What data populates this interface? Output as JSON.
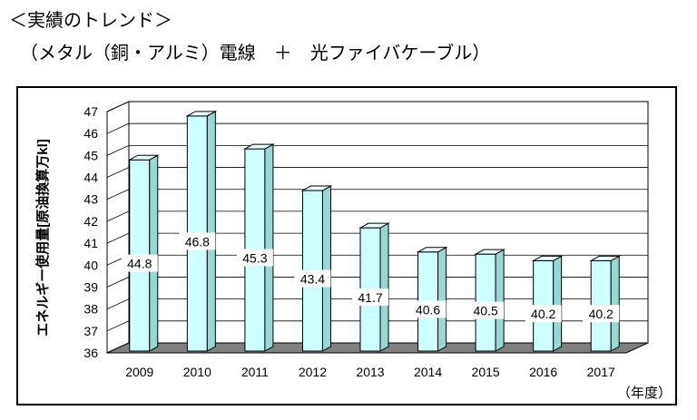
{
  "title_line1": "＜実績のトレンド＞",
  "title_line2": "（メタル（銅・アルミ）電線　＋　光ファイバケーブル）",
  "chart_data": {
    "type": "bar",
    "categories": [
      "2009",
      "2010",
      "2011",
      "2012",
      "2013",
      "2014",
      "2015",
      "2016",
      "2017"
    ],
    "values": [
      44.8,
      46.8,
      45.3,
      43.4,
      41.7,
      40.6,
      40.5,
      40.2,
      40.2
    ],
    "data_labels": [
      "44.8",
      "46.8",
      "45.3",
      "43.4",
      "41.7",
      "40.6",
      "40.5",
      "40.2",
      "40.2"
    ],
    "ylabel": "エネルギー使用量[原油換算万kl]",
    "xunit": "（年度）",
    "ylim": [
      36,
      47
    ],
    "yticks": [
      "36",
      "37",
      "38",
      "39",
      "40",
      "41",
      "42",
      "43",
      "44",
      "45",
      "46",
      "47"
    ],
    "grid": true,
    "style": "3d-bar",
    "colors": {
      "bar_front": "#ccffff",
      "bar_side": "#99d6d6",
      "bar_top": "#e6ffff",
      "wall": "#ffffff",
      "floor": "#808080"
    }
  }
}
